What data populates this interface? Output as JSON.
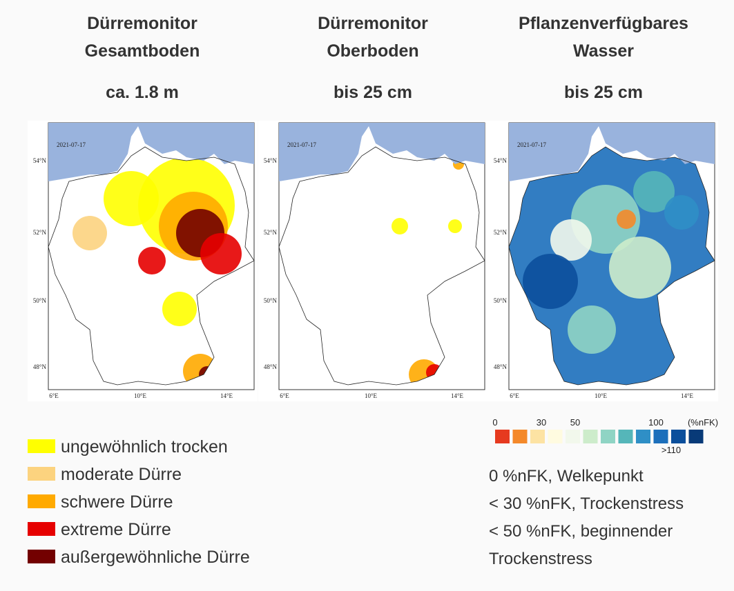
{
  "panels": [
    {
      "title": [
        "Dürremonitor",
        "Gesamtboden"
      ],
      "depth": "ca. 1.8 m",
      "date": "2021-07-17",
      "lat_labels": [
        "54°N",
        "52°N",
        "50°N",
        "48°N"
      ],
      "lon_labels": [
        "6°E",
        "10°E",
        "14°E"
      ]
    },
    {
      "title": [
        "Dürremonitor",
        "Oberboden"
      ],
      "depth": "bis 25 cm",
      "date": "2021-07-17",
      "lat_labels": [
        "54°N",
        "52°N",
        "50°N",
        "48°N"
      ],
      "lon_labels": [
        "6°E",
        "10°E",
        "14°E"
      ]
    },
    {
      "title": [
        "Pflanzenverfügbares",
        "Wasser"
      ],
      "depth": "bis 25 cm",
      "date": "2021-07-17",
      "lat_labels": [
        "54°N",
        "52°N",
        "50°N",
        "48°N"
      ],
      "lon_labels": [
        "6°E",
        "10°E",
        "14°E"
      ]
    }
  ],
  "drought_legend": [
    {
      "label": "ungewöhnlich trocken",
      "color": "#ffff00"
    },
    {
      "label": "moderate Dürre",
      "color": "#fcd37f"
    },
    {
      "label": "schwere Dürre",
      "color": "#ffaa00"
    },
    {
      "label": "extreme Dürre",
      "color": "#e60000"
    },
    {
      "label": "außergewöhnliche Dürre",
      "color": "#730000"
    }
  ],
  "nfk_scale": {
    "colors": [
      "#e63a1f",
      "#f4892a",
      "#fde3a3",
      "#fffbe0",
      "#f2f8ec",
      "#cdeccb",
      "#8fd4c4",
      "#55b6b9",
      "#2f8fc6",
      "#1c6fbb",
      "#0b4f9c",
      "#083a78"
    ],
    "labels": [
      "0",
      "30",
      "50",
      "100",
      "(%nFK)",
      ">110"
    ]
  },
  "nfk_notes": [
    "0 %nFK, Welkepunkt",
    "< 30 %nFK, Trockenstress",
    "< 50 %nFK, beginnender",
    "Trockenstress"
  ]
}
